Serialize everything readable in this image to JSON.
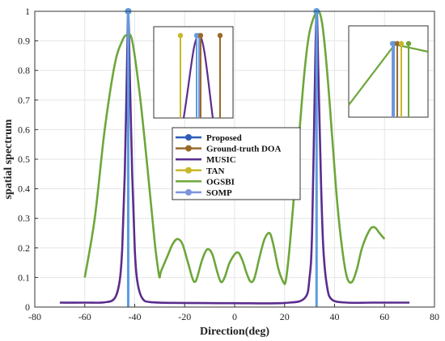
{
  "chart_data": {
    "type": "line",
    "xlabel": "Direction(deg)",
    "ylabel": "spatial spectrum",
    "xlim": [
      -80,
      80
    ],
    "ylim": [
      0,
      1
    ],
    "xticks": [
      "-80",
      "-60",
      "-40",
      "-20",
      "0",
      "20",
      "40",
      "60",
      "80"
    ],
    "yticks": [
      "0",
      "0.1",
      "0.2",
      "0.3",
      "0.4",
      "0.5",
      "0.6",
      "0.7",
      "0.8",
      "0.9",
      "1"
    ],
    "grid": true,
    "legend_position": "center",
    "legend": [
      {
        "name": "Proposed",
        "color": "#2a5db8",
        "marker": "circle"
      },
      {
        "name": "Ground-truth DOA",
        "color": "#9a6a2a",
        "marker": "circle"
      },
      {
        "name": "MUSIC",
        "color": "#5a2d8e",
        "marker": "line"
      },
      {
        "name": "TAN",
        "color": "#c8b828",
        "marker": "circle"
      },
      {
        "name": "OGSBI",
        "color": "#6ea63a",
        "marker": "line"
      },
      {
        "name": "SOMP",
        "color": "#7b95dc",
        "marker": "circle"
      }
    ],
    "stems": [
      {
        "series": "SOMP",
        "x": -42.6,
        "y": 1.0,
        "color": "#7b95dc"
      },
      {
        "series": "Proposed",
        "x": -42.6,
        "y": 1.0,
        "color": "#5b9de0"
      },
      {
        "series": "Proposed",
        "x": 32.8,
        "y": 1.0,
        "color": "#5b9de0"
      }
    ],
    "series": [
      {
        "name": "MUSIC",
        "color": "#5a2d8e",
        "points": [
          [
            -70,
            0.015
          ],
          [
            -60,
            0.015
          ],
          [
            -52,
            0.016
          ],
          [
            -48,
            0.03
          ],
          [
            -46,
            0.09
          ],
          [
            -45,
            0.2
          ],
          [
            -44,
            0.45
          ],
          [
            -43,
            0.85
          ],
          [
            -42.6,
            1.0
          ],
          [
            -42,
            0.8
          ],
          [
            -41,
            0.45
          ],
          [
            -40,
            0.2
          ],
          [
            -39,
            0.09
          ],
          [
            -37,
            0.03
          ],
          [
            -33,
            0.016
          ],
          [
            -20,
            0.014
          ],
          [
            0,
            0.013
          ],
          [
            20,
            0.014
          ],
          [
            28,
            0.03
          ],
          [
            30,
            0.1
          ],
          [
            31,
            0.25
          ],
          [
            32,
            0.7
          ],
          [
            32.8,
            1.0
          ],
          [
            33.5,
            0.8
          ],
          [
            34.5,
            0.45
          ],
          [
            35.5,
            0.2
          ],
          [
            37,
            0.07
          ],
          [
            39,
            0.025
          ],
          [
            45,
            0.015
          ],
          [
            55,
            0.015
          ],
          [
            70,
            0.015
          ]
        ]
      },
      {
        "name": "OGSBI",
        "color": "#6ea63a",
        "points": [
          [
            -60,
            0.1
          ],
          [
            -56,
            0.3
          ],
          [
            -52,
            0.6
          ],
          [
            -48,
            0.82
          ],
          [
            -45,
            0.9
          ],
          [
            -43,
            0.92
          ],
          [
            -41,
            0.9
          ],
          [
            -38,
            0.72
          ],
          [
            -35,
            0.48
          ],
          [
            -32,
            0.22
          ],
          [
            -30.5,
            0.12
          ],
          [
            -30,
            0.1
          ],
          [
            -29.5,
            0.12
          ],
          [
            -27,
            0.17
          ],
          [
            -25,
            0.21
          ],
          [
            -23,
            0.23
          ],
          [
            -21,
            0.215
          ],
          [
            -19,
            0.16
          ],
          [
            -17,
            0.1
          ],
          [
            -16,
            0.085
          ],
          [
            -15,
            0.1
          ],
          [
            -13,
            0.16
          ],
          [
            -11,
            0.195
          ],
          [
            -9,
            0.18
          ],
          [
            -7,
            0.12
          ],
          [
            -5.5,
            0.085
          ],
          [
            -4,
            0.1
          ],
          [
            -2,
            0.15
          ],
          [
            1,
            0.185
          ],
          [
            3,
            0.16
          ],
          [
            5,
            0.11
          ],
          [
            6.5,
            0.085
          ],
          [
            8,
            0.1
          ],
          [
            10,
            0.17
          ],
          [
            12,
            0.23
          ],
          [
            14,
            0.25
          ],
          [
            15.5,
            0.21
          ],
          [
            17.5,
            0.13
          ],
          [
            19.5,
            0.085
          ],
          [
            20.5,
            0.09
          ],
          [
            22,
            0.2
          ],
          [
            24,
            0.4
          ],
          [
            26,
            0.6
          ],
          [
            28,
            0.8
          ],
          [
            30,
            0.93
          ],
          [
            33,
            1.0
          ],
          [
            35,
            0.96
          ],
          [
            37,
            0.8
          ],
          [
            39,
            0.58
          ],
          [
            41,
            0.36
          ],
          [
            43,
            0.2
          ],
          [
            45,
            0.1
          ],
          [
            47,
            0.085
          ],
          [
            49,
            0.13
          ],
          [
            51,
            0.2
          ],
          [
            54,
            0.26
          ],
          [
            56,
            0.27
          ],
          [
            58,
            0.25
          ],
          [
            60,
            0.23
          ]
        ]
      }
    ]
  },
  "insets": [
    {
      "stems": [
        {
          "series": "TAN",
          "color": "#c8b828"
        },
        {
          "series": "Proposed",
          "color": "#5b9de0"
        },
        {
          "series": "SOMP",
          "color": "#7b95dc"
        },
        {
          "series": "Ground-truth DOA",
          "color": "#9a6a2a"
        },
        {
          "series": "Ground-truth DOA",
          "color": "#9a6a2a"
        }
      ],
      "curve_color": "#5a2d8e"
    },
    {
      "stems": [
        {
          "series": "SOMP",
          "color": "#7b95dc"
        },
        {
          "series": "Proposed",
          "color": "#5b9de0"
        },
        {
          "series": "Ground-truth DOA",
          "color": "#9a6a2a"
        },
        {
          "series": "TAN",
          "color": "#c8b828"
        },
        {
          "series": "OGSBI",
          "color": "#6ea63a"
        }
      ],
      "curve_color": "#6ea63a"
    }
  ]
}
